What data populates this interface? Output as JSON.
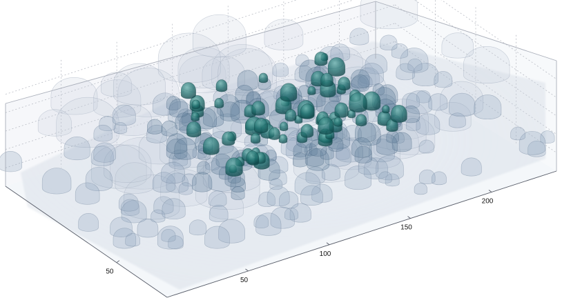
{
  "chart_data": {
    "type": "isosurface-3d",
    "axes": {
      "x": {
        "ticks": [
          50,
          100,
          150,
          200
        ],
        "tick_labels": [
          "50",
          "100",
          "150",
          "200"
        ],
        "range": [
          0,
          240
        ]
      },
      "y": {
        "ticks": [
          50
        ],
        "tick_labels": [
          "50"
        ],
        "range": [
          0,
          160
        ]
      },
      "z": {
        "ticks": [],
        "tick_labels": []
      }
    },
    "colors": {
      "outer_shell": "#c5cedb",
      "mid_shell": "#8fa4bd",
      "inner_shell": "#5f7f9c",
      "core": "#1f6f6d"
    },
    "grid": true
  }
}
